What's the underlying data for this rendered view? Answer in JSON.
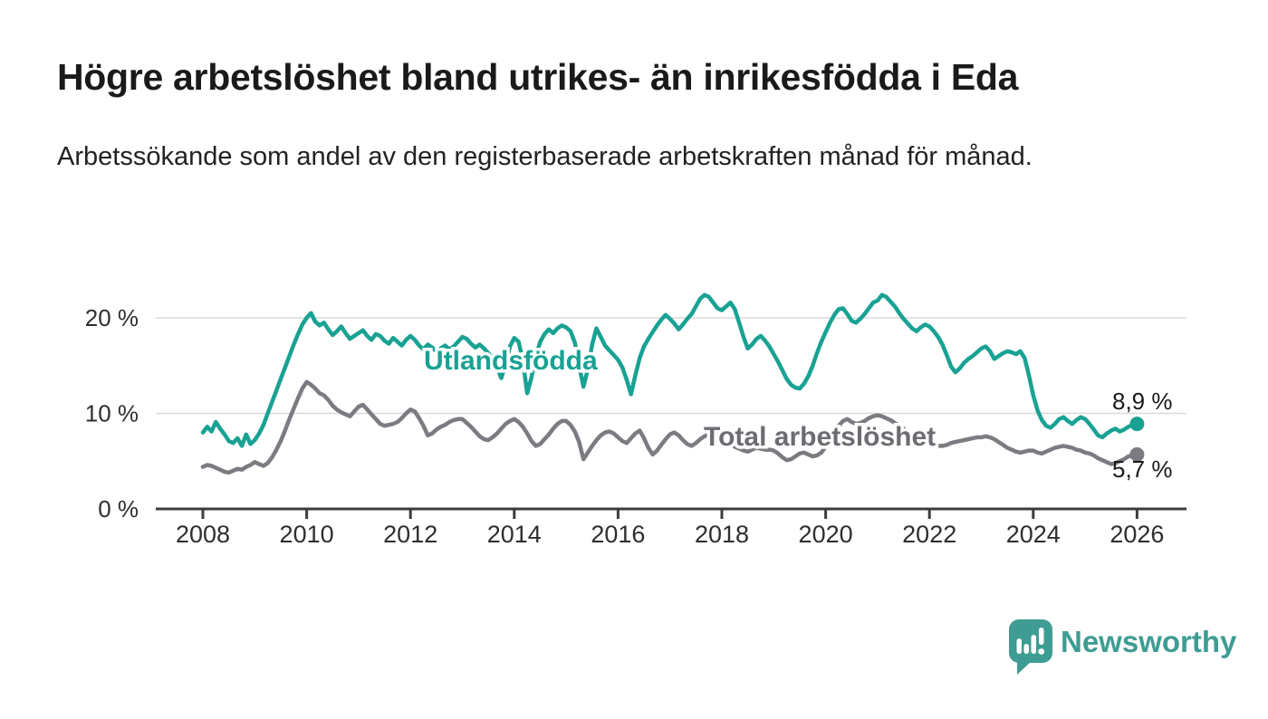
{
  "title": "Högre arbetslöshet bland utrikes- än inrikesfödda i Eda",
  "subtitle": "Arbetssökande som andel av den registerbaserade arbetskraften månad för månad.",
  "colors": {
    "series_teal": "#19a294",
    "series_gray": "#7b7b81",
    "series_label_gray": "#6c6c72",
    "axis": "#3c3c3c",
    "grid": "#dadada",
    "tick_text": "#2e2e2e",
    "value_text": "#1a1a1a",
    "title_text": "#1a1a1a",
    "subtitle_text": "#222222",
    "logo_teal": "#3e9c94",
    "background": "#ffffff"
  },
  "chart_data": {
    "type": "line",
    "title": "Högre arbetslöshet bland utrikes- än inrikesfödda i Eda",
    "subtitle": "Arbetssökande som andel av den registerbaserade arbetskraften månad för månad.",
    "x_unit": "month",
    "x_start_year": 2008,
    "x_end_year": 2026,
    "x_axis_ticks": [
      2008,
      2010,
      2012,
      2014,
      2016,
      2018,
      2020,
      2022,
      2024,
      2026
    ],
    "y_axis": {
      "unit": "%",
      "min": 0,
      "max": 23,
      "tick_values": [
        0,
        10,
        20
      ],
      "tick_labels": [
        "0 %",
        "10 %",
        "20 %"
      ],
      "grid": true
    },
    "legend_position": "inline-labels",
    "series": [
      {
        "name": "Utlandsfödda",
        "color_key": "series_teal",
        "end_value": 8.9,
        "end_label": "8,9 %",
        "values": [
          8.0,
          8.6,
          8.1,
          9.1,
          8.4,
          7.8,
          7.1,
          6.9,
          7.4,
          6.6,
          7.8,
          6.8,
          7.2,
          7.9,
          8.8,
          10.0,
          11.2,
          12.4,
          13.6,
          14.8,
          16.0,
          17.2,
          18.3,
          19.3,
          20.0,
          20.5,
          19.6,
          19.2,
          19.5,
          18.8,
          18.2,
          18.6,
          19.1,
          18.4,
          17.8,
          18.1,
          18.4,
          18.7,
          18.1,
          17.7,
          18.3,
          18.1,
          17.6,
          17.3,
          17.9,
          17.5,
          17.1,
          17.7,
          18.1,
          17.7,
          17.1,
          16.7,
          17.2,
          16.9,
          16.5,
          16.8,
          17.1,
          16.7,
          17.0,
          17.5,
          18.0,
          17.8,
          17.3,
          16.9,
          17.2,
          16.8,
          16.3,
          15.8,
          14.8,
          13.7,
          15.2,
          17.0,
          17.9,
          17.5,
          15.5,
          12.1,
          13.8,
          16.0,
          17.5,
          18.3,
          18.8,
          18.4,
          18.9,
          19.2,
          19.0,
          18.6,
          17.4,
          15.0,
          12.8,
          14.6,
          17.2,
          18.9,
          18.0,
          17.1,
          16.6,
          16.1,
          15.6,
          14.8,
          13.5,
          12.0,
          14.0,
          15.8,
          17.0,
          17.8,
          18.5,
          19.2,
          19.8,
          20.3,
          19.9,
          19.4,
          18.8,
          19.3,
          19.9,
          20.4,
          21.2,
          22.0,
          22.4,
          22.2,
          21.6,
          21.0,
          20.8,
          21.2,
          21.6,
          20.9,
          19.5,
          18.0,
          16.8,
          17.2,
          17.8,
          18.1,
          17.6,
          17.0,
          16.2,
          15.4,
          14.5,
          13.6,
          13.0,
          12.7,
          12.6,
          13.1,
          13.9,
          15.0,
          16.3,
          17.5,
          18.5,
          19.5,
          20.3,
          20.9,
          21.0,
          20.4,
          19.7,
          19.5,
          19.9,
          20.4,
          21.0,
          21.6,
          21.8,
          22.4,
          22.2,
          21.7,
          21.2,
          20.5,
          19.9,
          19.4,
          18.9,
          18.6,
          19.0,
          19.3,
          19.1,
          18.6,
          18.0,
          17.2,
          16.1,
          14.9,
          14.3,
          14.7,
          15.3,
          15.7,
          16.0,
          16.4,
          16.8,
          17.0,
          16.5,
          15.7,
          16.0,
          16.3,
          16.5,
          16.4,
          16.2,
          16.5,
          15.8,
          14.0,
          11.9,
          10.3,
          9.3,
          8.7,
          8.5,
          8.9,
          9.4,
          9.6,
          9.2,
          8.9,
          9.3,
          9.6,
          9.4,
          8.9,
          8.3,
          7.7,
          7.5,
          7.9,
          8.2,
          8.4,
          8.1,
          8.3,
          8.6,
          8.8,
          8.9
        ]
      },
      {
        "name": "Total arbetslöshet",
        "color_key": "series_gray",
        "end_value": 5.7,
        "end_label": "5,7 %",
        "values": [
          4.4,
          4.6,
          4.5,
          4.3,
          4.1,
          3.9,
          3.8,
          4.0,
          4.2,
          4.1,
          4.4,
          4.6,
          4.9,
          4.7,
          4.5,
          4.8,
          5.4,
          6.2,
          7.1,
          8.2,
          9.4,
          10.5,
          11.6,
          12.6,
          13.3,
          13.0,
          12.6,
          12.1,
          11.9,
          11.4,
          10.8,
          10.4,
          10.1,
          9.9,
          9.7,
          10.2,
          10.7,
          10.9,
          10.4,
          9.9,
          9.4,
          8.9,
          8.7,
          8.8,
          8.9,
          9.1,
          9.5,
          10.0,
          10.4,
          10.2,
          9.5,
          8.7,
          7.7,
          7.9,
          8.3,
          8.6,
          8.8,
          9.1,
          9.3,
          9.4,
          9.4,
          9.0,
          8.6,
          8.1,
          7.6,
          7.3,
          7.2,
          7.5,
          7.9,
          8.4,
          8.9,
          9.2,
          9.4,
          9.1,
          8.6,
          7.9,
          7.1,
          6.6,
          6.8,
          7.3,
          7.8,
          8.4,
          8.9,
          9.2,
          9.2,
          8.8,
          8.1,
          7.0,
          5.2,
          5.9,
          6.6,
          7.2,
          7.7,
          8.0,
          8.1,
          7.9,
          7.5,
          7.1,
          6.9,
          7.4,
          7.9,
          8.2,
          7.4,
          6.4,
          5.7,
          6.1,
          6.7,
          7.3,
          7.8,
          8.0,
          7.7,
          7.2,
          6.8,
          6.6,
          6.9,
          7.3,
          7.6,
          7.8,
          7.7,
          7.5,
          7.3,
          7.0,
          6.8,
          6.5,
          6.3,
          6.1,
          6.0,
          6.2,
          6.4,
          6.3,
          6.2,
          6.2,
          6.1,
          5.8,
          5.4,
          5.1,
          5.2,
          5.5,
          5.8,
          5.9,
          5.7,
          5.5,
          5.6,
          5.9,
          6.5,
          7.2,
          8.0,
          8.7,
          9.2,
          9.4,
          9.1,
          8.9,
          9.0,
          9.2,
          9.5,
          9.7,
          9.8,
          9.7,
          9.5,
          9.3,
          9.0,
          8.7,
          8.4,
          8.1,
          7.8,
          7.5,
          7.2,
          7.0,
          6.9,
          6.8,
          6.6,
          6.6,
          6.7,
          6.9,
          7.0,
          7.1,
          7.2,
          7.3,
          7.4,
          7.5,
          7.5,
          7.6,
          7.5,
          7.3,
          7.0,
          6.7,
          6.4,
          6.2,
          6.0,
          5.9,
          6.0,
          6.1,
          6.1,
          5.9,
          5.8,
          6.0,
          6.2,
          6.4,
          6.5,
          6.6,
          6.5,
          6.4,
          6.2,
          6.1,
          5.9,
          5.8,
          5.6,
          5.3,
          5.1,
          4.9,
          4.7,
          4.8,
          5.0,
          5.2,
          5.5,
          5.6,
          5.7
        ]
      }
    ]
  },
  "logo": {
    "text": "Newsworthy",
    "icon": "newsworthy-speech-bubble-bar-chart-icon"
  }
}
